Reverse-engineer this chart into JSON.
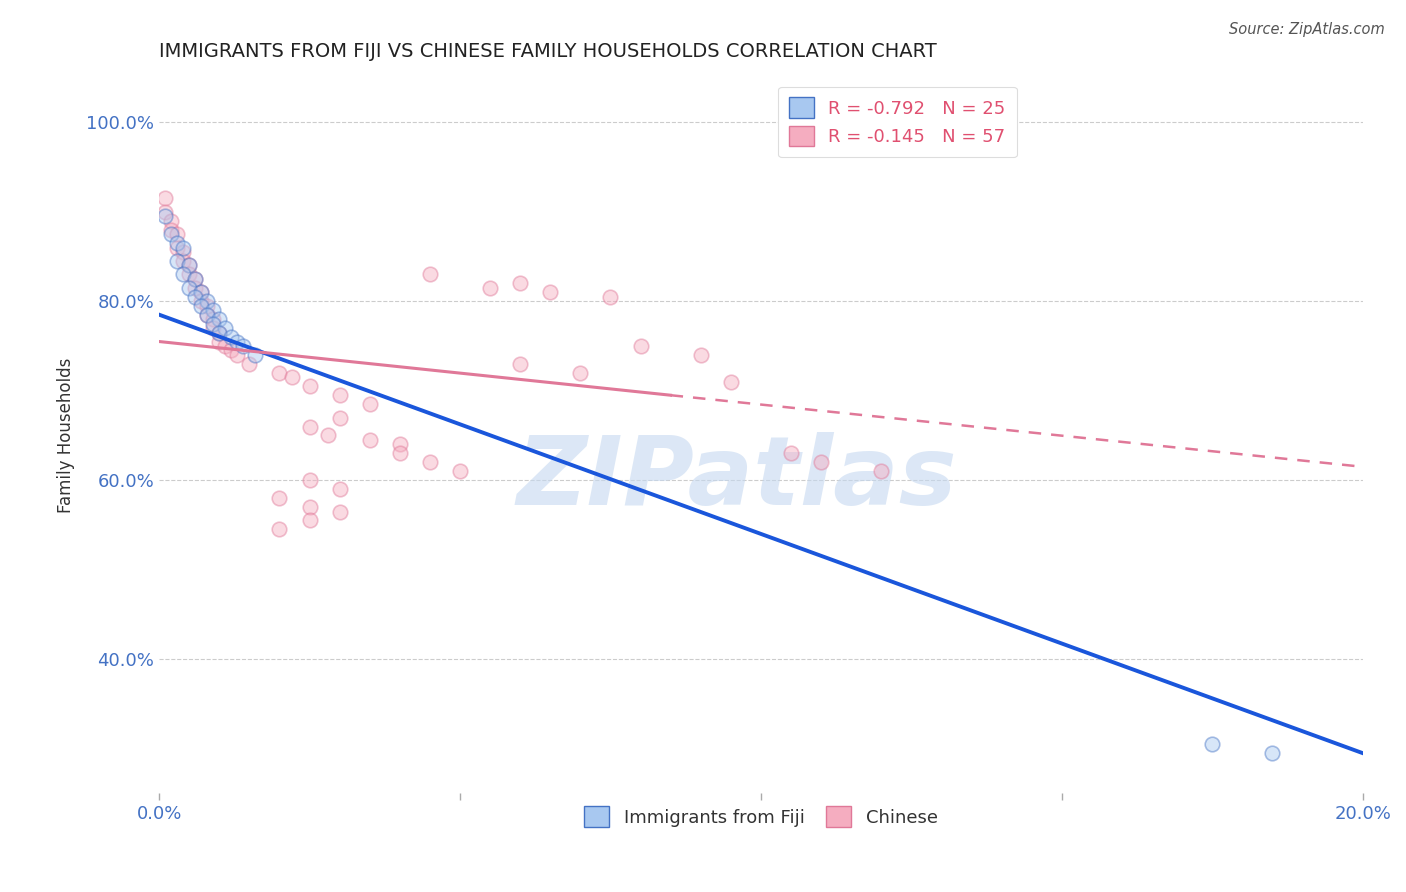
{
  "title": "IMMIGRANTS FROM FIJI VS CHINESE FAMILY HOUSEHOLDS CORRELATION CHART",
  "source": "Source: ZipAtlas.com",
  "ylabel": "Family Households",
  "xlim": [
    0.0,
    0.2
  ],
  "ylim": [
    0.25,
    1.05
  ],
  "xtick_vals": [
    0.0,
    0.05,
    0.1,
    0.15,
    0.2
  ],
  "xtick_labels": [
    "0.0%",
    "",
    "",
    "",
    "20.0%"
  ],
  "ytick_vals": [
    0.4,
    0.6,
    0.8,
    1.0
  ],
  "ytick_labels": [
    "40.0%",
    "60.0%",
    "80.0%",
    "100.0%"
  ],
  "legend_entries": [
    {
      "label": "R = -0.792   N = 25",
      "color": "#aac4f0"
    },
    {
      "label": "R = -0.145   N = 57",
      "color": "#f5a8bc"
    }
  ],
  "blue_scatter": [
    [
      0.001,
      0.895
    ],
    [
      0.002,
      0.875
    ],
    [
      0.003,
      0.865
    ],
    [
      0.004,
      0.86
    ],
    [
      0.003,
      0.845
    ],
    [
      0.005,
      0.84
    ],
    [
      0.004,
      0.83
    ],
    [
      0.006,
      0.825
    ],
    [
      0.005,
      0.815
    ],
    [
      0.007,
      0.81
    ],
    [
      0.006,
      0.805
    ],
    [
      0.008,
      0.8
    ],
    [
      0.007,
      0.795
    ],
    [
      0.009,
      0.79
    ],
    [
      0.008,
      0.785
    ],
    [
      0.01,
      0.78
    ],
    [
      0.009,
      0.775
    ],
    [
      0.011,
      0.77
    ],
    [
      0.01,
      0.765
    ],
    [
      0.012,
      0.76
    ],
    [
      0.013,
      0.755
    ],
    [
      0.014,
      0.75
    ],
    [
      0.016,
      0.74
    ],
    [
      0.185,
      0.295
    ],
    [
      0.175,
      0.305
    ]
  ],
  "pink_scatter": [
    [
      0.001,
      0.915
    ],
    [
      0.001,
      0.9
    ],
    [
      0.002,
      0.89
    ],
    [
      0.002,
      0.88
    ],
    [
      0.003,
      0.875
    ],
    [
      0.003,
      0.86
    ],
    [
      0.004,
      0.855
    ],
    [
      0.004,
      0.845
    ],
    [
      0.005,
      0.84
    ],
    [
      0.005,
      0.83
    ],
    [
      0.006,
      0.825
    ],
    [
      0.006,
      0.815
    ],
    [
      0.007,
      0.81
    ],
    [
      0.007,
      0.8
    ],
    [
      0.008,
      0.795
    ],
    [
      0.008,
      0.785
    ],
    [
      0.009,
      0.78
    ],
    [
      0.009,
      0.77
    ],
    [
      0.01,
      0.765
    ],
    [
      0.01,
      0.755
    ],
    [
      0.011,
      0.75
    ],
    [
      0.012,
      0.745
    ],
    [
      0.013,
      0.74
    ],
    [
      0.015,
      0.73
    ],
    [
      0.02,
      0.72
    ],
    [
      0.022,
      0.715
    ],
    [
      0.025,
      0.705
    ],
    [
      0.03,
      0.695
    ],
    [
      0.035,
      0.685
    ],
    [
      0.03,
      0.67
    ],
    [
      0.025,
      0.66
    ],
    [
      0.028,
      0.65
    ],
    [
      0.035,
      0.645
    ],
    [
      0.04,
      0.64
    ],
    [
      0.04,
      0.63
    ],
    [
      0.045,
      0.62
    ],
    [
      0.05,
      0.61
    ],
    [
      0.025,
      0.6
    ],
    [
      0.03,
      0.59
    ],
    [
      0.02,
      0.58
    ],
    [
      0.025,
      0.57
    ],
    [
      0.03,
      0.565
    ],
    [
      0.025,
      0.555
    ],
    [
      0.02,
      0.545
    ],
    [
      0.045,
      0.83
    ],
    [
      0.06,
      0.82
    ],
    [
      0.055,
      0.815
    ],
    [
      0.065,
      0.81
    ],
    [
      0.075,
      0.805
    ],
    [
      0.08,
      0.75
    ],
    [
      0.09,
      0.74
    ],
    [
      0.06,
      0.73
    ],
    [
      0.07,
      0.72
    ],
    [
      0.095,
      0.71
    ],
    [
      0.105,
      0.63
    ],
    [
      0.11,
      0.62
    ],
    [
      0.12,
      0.61
    ]
  ],
  "blue_line": {
    "x0": 0.0,
    "y0": 0.785,
    "x1": 0.2,
    "y1": 0.295
  },
  "pink_solid_line": {
    "x0": 0.0,
    "y0": 0.755,
    "x1": 0.085,
    "y1": 0.695
  },
  "pink_dashed_line": {
    "x0": 0.085,
    "y0": 0.695,
    "x1": 0.2,
    "y1": 0.615
  },
  "bg_color": "#ffffff",
  "grid_color": "#cccccc",
  "axis_label_color": "#4472c4",
  "title_color": "#222222",
  "watermark_text": "ZIPatlas",
  "watermark_color": "#c5d8f0",
  "scatter_size": 110,
  "scatter_alpha": 0.45,
  "scatter_linewidth": 1.2
}
